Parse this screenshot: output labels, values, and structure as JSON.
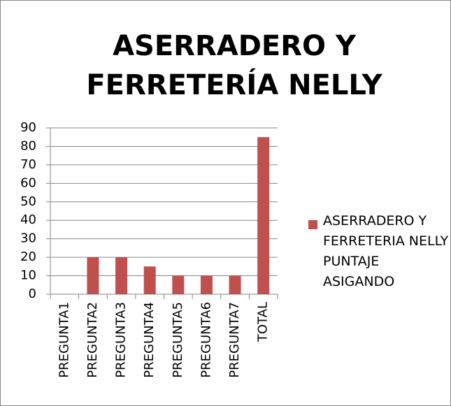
{
  "chart_data": {
    "type": "bar",
    "title": "ASERRADERO Y FERRETERÍA NELLY",
    "categories": [
      "PREGUNTA1",
      "PREGUNTA2",
      "PREGUNTA3",
      "PREGUNTA4",
      "PREGUNTA5",
      "PREGUNTA6",
      "PREGUNTA7",
      "TOTAL"
    ],
    "series": [
      {
        "name": "ASERRADERO Y FERRETERIA NELLY PUNTAJE ASIGANDO",
        "color": "#c0504d",
        "values": [
          0,
          20,
          20,
          15,
          10,
          10,
          10,
          85
        ]
      }
    ],
    "ylim": [
      0,
      90
    ],
    "yticks": [
      0,
      10,
      20,
      30,
      40,
      50,
      60,
      70,
      80,
      90
    ],
    "grid": true,
    "legend": "right"
  }
}
